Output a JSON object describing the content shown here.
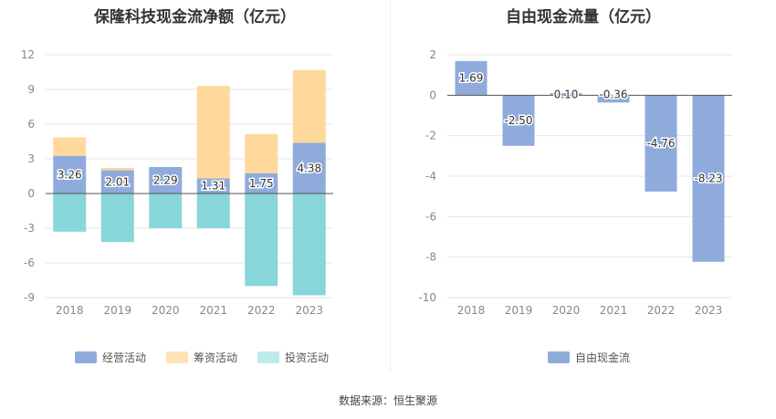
{
  "chart_data": [
    {
      "type": "bar",
      "stacked": true,
      "title": "保隆科技现金流净额（亿元）",
      "categories": [
        "2018",
        "2019",
        "2020",
        "2021",
        "2022",
        "2023"
      ],
      "ylim": [
        -9,
        12
      ],
      "yticks": [
        12,
        9,
        6,
        3,
        0,
        -3,
        -6,
        -9
      ],
      "grid": true,
      "legend_position": "bottom",
      "series": [
        {
          "name": "经营活动",
          "color": "#8fabdc",
          "values": [
            3.26,
            2.01,
            2.29,
            1.31,
            1.75,
            4.38
          ],
          "labels": [
            "3.26",
            "2.01",
            "2.29",
            "1.31",
            "1.75",
            "4.38"
          ]
        },
        {
          "name": "筹资活动",
          "color": "#ffd99b",
          "values": [
            1.6,
            0.2,
            0,
            8.0,
            3.4,
            6.3
          ]
        },
        {
          "name": "投资活动",
          "color": "#88d6d9",
          "values": [
            -3.3,
            -4.2,
            -3.0,
            -3.0,
            -8.0,
            -8.8
          ]
        }
      ]
    },
    {
      "type": "bar",
      "title": "自由现金流量（亿元）",
      "categories": [
        "2018",
        "2019",
        "2020",
        "2021",
        "2022",
        "2023"
      ],
      "ylim": [
        -10,
        2
      ],
      "yticks": [
        2,
        0,
        -2,
        -4,
        -6,
        -8,
        -10
      ],
      "grid": true,
      "legend_position": "bottom",
      "series": [
        {
          "name": "自由现金流",
          "color": "#8fabdc",
          "values": [
            1.69,
            -2.5,
            0.1,
            -0.36,
            -4.76,
            -8.23
          ],
          "labels": [
            "1.69",
            "-2.50",
            "0.10",
            "-0.36",
            "-4.76",
            "-8.23"
          ]
        }
      ]
    }
  ],
  "legend_colors": {
    "operating_legend": "#8fabdc",
    "financing_legend": "#ffe3b8",
    "investing_legend": "#bfeaec",
    "fcf_legend": "#8fabdc"
  },
  "source": "数据来源：恒生聚源"
}
